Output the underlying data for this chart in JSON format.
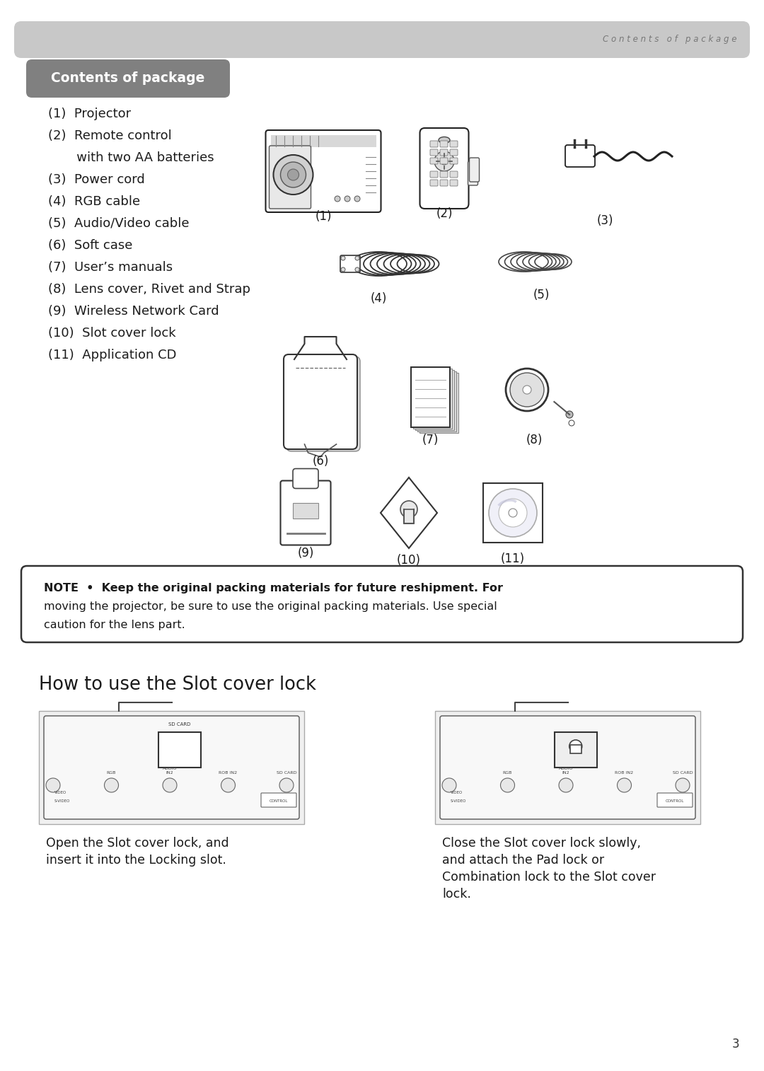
{
  "page_bg": "#ffffff",
  "top_bar_color": "#c8c8c8",
  "top_bar_text": "C o n t e n t s   o f   p a c k a g e",
  "section_header_bg": "#808080",
  "section_header_text": "Contents of package",
  "items": [
    "(1)  Projector",
    "(2)  Remote control",
    "       with two AA batteries",
    "(3)  Power cord",
    "(4)  RGB cable",
    "(5)  Audio/Video cable",
    "(6)  Soft case",
    "(7)  User’s manuals",
    "(8)  Lens cover, Rivet and Strap",
    "(9)  Wireless Network Card",
    "(10)  Slot cover lock",
    "(11)  Application CD"
  ],
  "note_lines": [
    "NOTE  •  Keep the original packing materials for future reshipment. For",
    "moving the projector, be sure to use the original packing materials. Use special",
    "caution for the lens part."
  ],
  "section2_title": "How to use the Slot cover lock",
  "caption_left_lines": [
    "Open the Slot cover lock, and",
    "insert it into the Locking slot."
  ],
  "caption_right_lines": [
    "Close the Slot cover lock slowly,",
    "and attach the Pad lock or",
    "Combination lock to the Slot cover",
    "lock."
  ],
  "page_number": "3",
  "label_row1": [
    "(1)",
    "(2)",
    "(3)"
  ],
  "label_row2": [
    "(4)",
    "(5)"
  ],
  "label_row3": [
    "(6)",
    "(7)",
    "(8)"
  ],
  "label_row4": [
    "(9)",
    "(10)",
    "(11)"
  ]
}
